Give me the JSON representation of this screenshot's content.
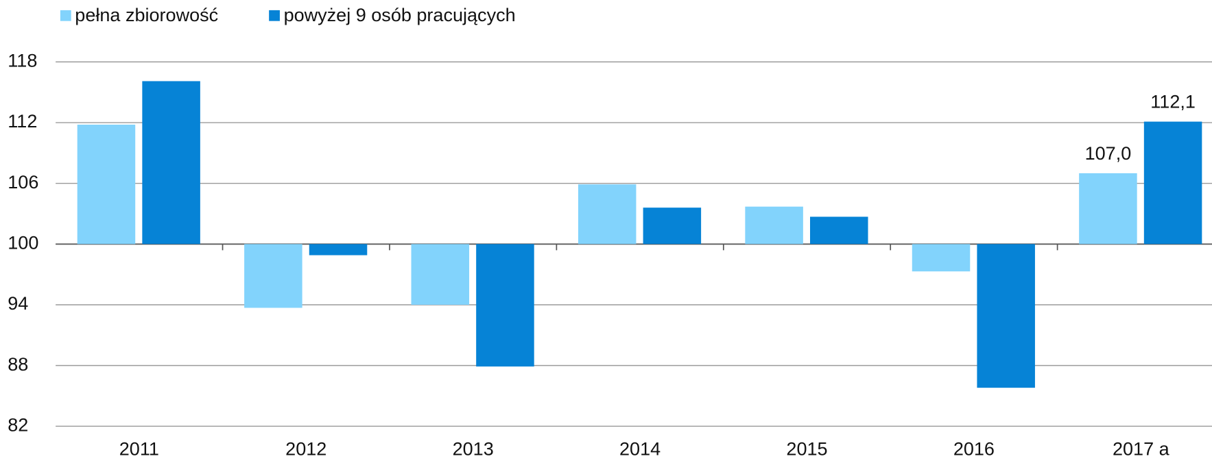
{
  "chart_data": {
    "type": "bar",
    "categories": [
      "2011",
      "2012",
      "2013",
      "2014",
      "2015",
      "2016",
      "2017 a"
    ],
    "series": [
      {
        "name": "pełna zbiorowość",
        "color": "#82d3fc",
        "values": [
          111.8,
          93.7,
          94.0,
          105.9,
          103.7,
          97.3,
          107.0
        ],
        "value_labels": [
          null,
          null,
          null,
          null,
          null,
          null,
          "107,0"
        ]
      },
      {
        "name": "powyżej 9 osób pracujących",
        "color": "#0683d6",
        "values": [
          116.1,
          98.9,
          87.9,
          103.6,
          102.7,
          85.8,
          112.1
        ],
        "value_labels": [
          null,
          null,
          null,
          null,
          null,
          null,
          "112,1"
        ]
      }
    ],
    "ylim": [
      82,
      118
    ],
    "yticks": [
      82,
      88,
      94,
      100,
      106,
      112,
      118
    ],
    "bar_base": 100,
    "grid": true,
    "legend": "top-left"
  }
}
